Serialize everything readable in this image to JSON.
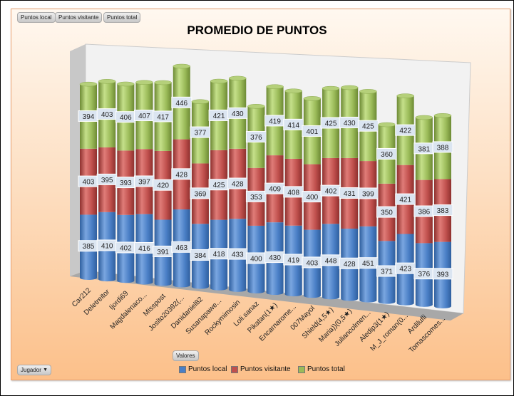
{
  "field_buttons": [
    "Puntos local",
    "Puntos visitante",
    "Puntos total"
  ],
  "values_button": "Valores",
  "axis_filter": {
    "label": "Jugador",
    "arrow": "▼"
  },
  "chart_data": {
    "type": "bar",
    "style": "3d-stacked-cylinder",
    "title": "PROMEDIO DE PUNTOS",
    "categories": [
      "Car212",
      "Deletreitor",
      "Ijordi69",
      "Magdalenaco...",
      "Misspost",
      "Josito20392(...",
      "Danidaniel82",
      "Susanapawe...",
      "Rockymimosin",
      "Loli.sanaz",
      "Pikatan(1★)",
      "Encarnarome...",
      "007Mayol",
      "Shield(4,5★)",
      "Maria))(0,5★)",
      "Juliancolmen...",
      "Aledip3(1★)",
      "M_J_roman(0...",
      "Ardilufli",
      "Tomascomes..."
    ],
    "series": [
      {
        "name": "Puntos local",
        "color": "#4a7fc6",
        "values": [
          385,
          410,
          402,
          416,
          391,
          463,
          384,
          418,
          433,
          400,
          430,
          419,
          403,
          448,
          428,
          451,
          371,
          423,
          376,
          393
        ]
      },
      {
        "name": "Puntos visitante",
        "color": "#c0504d",
        "values": [
          403,
          395,
          393,
          397,
          420,
          428,
          369,
          425,
          428,
          353,
          409,
          408,
          400,
          402,
          431,
          399,
          350,
          421,
          386,
          383
        ]
      },
      {
        "name": "Puntos total",
        "color": "#9bbb59",
        "values": [
          394,
          403,
          406,
          407,
          417,
          446,
          377,
          421,
          430,
          376,
          419,
          414,
          401,
          425,
          430,
          425,
          360,
          422,
          381,
          388
        ]
      }
    ],
    "legend": "bottom",
    "data_labels": true
  }
}
